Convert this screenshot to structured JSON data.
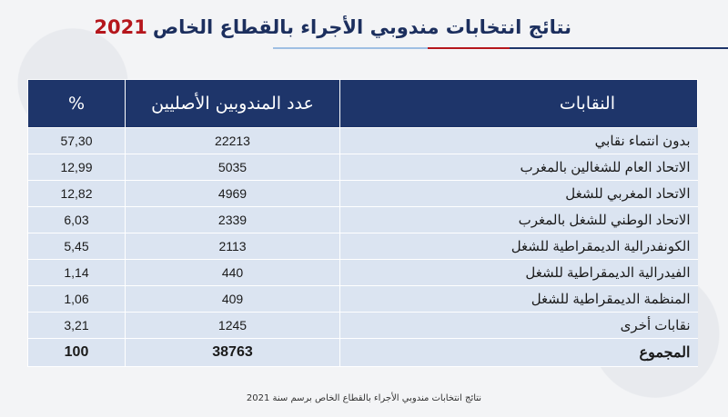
{
  "title": {
    "text": "نتائج انتخابات مندوبي الأجراء بالقطاع الخاص",
    "year": "2021"
  },
  "colors": {
    "header_bg": "#1e356a",
    "row_bg": "#dbe4f1",
    "title": "#1c2f5e",
    "year": "#b5161c",
    "accent_underline": [
      "#b5161c",
      "#1e356a",
      "#7da8d8"
    ]
  },
  "table": {
    "headers": {
      "name": "النقابات",
      "count": "عدد المندوبين الأصليين",
      "pct": "%"
    },
    "rows": [
      {
        "name": "بدون انتماء نقابي",
        "count": "22213",
        "pct": "57,30"
      },
      {
        "name": "الاتحاد العام للشغالين بالمغرب",
        "count": "5035",
        "pct": "12,99"
      },
      {
        "name": "الاتحاد المغربي للشغل",
        "count": "4969",
        "pct": "12,82"
      },
      {
        "name": "الاتحاد الوطني للشغل بالمغرب",
        "count": "2339",
        "pct": "6,03"
      },
      {
        "name": "الكونفدرالية الديمقراطية للشغل",
        "count": "2113",
        "pct": "5,45"
      },
      {
        "name": "الفيدرالية الديمقراطية للشغل",
        "count": "440",
        "pct": "1,14"
      },
      {
        "name": "المنظمة الديمقراطية للشغل",
        "count": "409",
        "pct": "1,06"
      },
      {
        "name": "نقابات أخرى",
        "count": "1245",
        "pct": "3,21"
      }
    ],
    "total": {
      "name": "المجموع",
      "count": "38763",
      "pct": "100"
    }
  },
  "footer": "نتائج انتخابات مندوبي الأجراء بالقطاع الخاص برسم سنة 2021"
}
